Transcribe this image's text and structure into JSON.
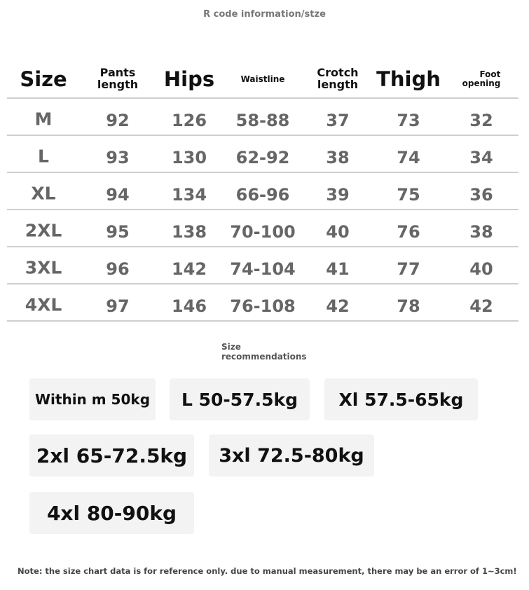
{
  "title": "R code information/stze",
  "table": {
    "headers": [
      "Size",
      "Pants length",
      "Hips",
      "Waistline",
      "Crotch length",
      "Thigh",
      "Foot opening"
    ],
    "rows": [
      [
        "M",
        "92",
        "126",
        "58-88",
        "37",
        "73",
        "32"
      ],
      [
        "L",
        "93",
        "130",
        "62-92",
        "38",
        "74",
        "34"
      ],
      [
        "XL",
        "94",
        "134",
        "66-96",
        "39",
        "75",
        "36"
      ],
      [
        "2XL",
        "95",
        "138",
        "70-100",
        "40",
        "76",
        "38"
      ],
      [
        "3XL",
        "96",
        "142",
        "74-104",
        "41",
        "77",
        "40"
      ],
      [
        "4XL",
        "97",
        "146",
        "76-108",
        "42",
        "78",
        "42"
      ]
    ]
  },
  "recommendations": {
    "title_line1": "Size",
    "title_line2": "recommendations",
    "items": [
      "Within m 50kg",
      "L 50-57.5kg",
      "Xl 57.5-65kg",
      "2xl 65-72.5kg",
      "3xl 72.5-80kg",
      "4xl 80-90kg"
    ]
  },
  "note": "Note: the size chart data is for reference only. due to manual measurement, there may be an error of 1~3cm!"
}
